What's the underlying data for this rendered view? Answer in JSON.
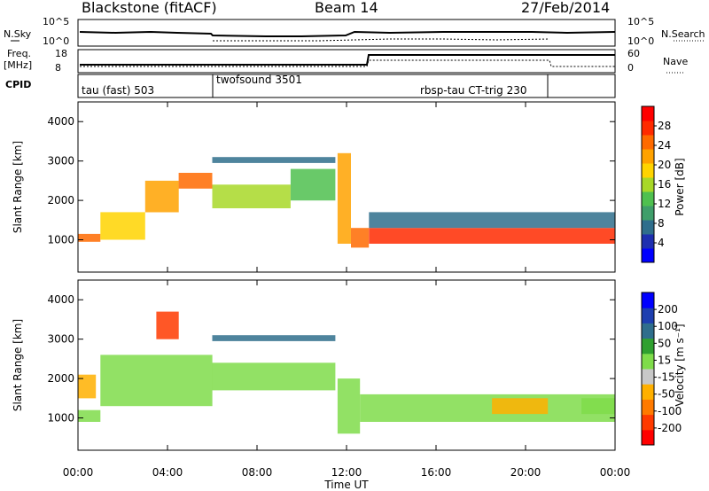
{
  "header": {
    "station": "Blackstone (fitACF)",
    "beam": "Beam 14",
    "date": "27/Feb/2014"
  },
  "panels": {
    "noise_left_label": "N.Sky",
    "noise_right_label": "N.Search",
    "noise_left_ticks": [
      "10^5",
      "10^0"
    ],
    "noise_right_ticks": [
      "10^5",
      "10^0"
    ],
    "freq_label_line1": "Freq.",
    "freq_label_line2": "[MHz]",
    "freq_ticks": [
      "18",
      "8"
    ],
    "nave_label": "Nave",
    "nave_ticks": [
      "60",
      "0"
    ],
    "cpid_label": "CPID",
    "cpid_segments": [
      {
        "label": "tau (fast) 503"
      },
      {
        "label": "twofsound 3501"
      },
      {
        "label": "rbsp-tau CT-trig 230"
      }
    ]
  },
  "axes": {
    "ylabel": "Slant Range [km]",
    "yticks": [
      "4000",
      "3000",
      "2000",
      "1000"
    ],
    "xticks": [
      "00:00",
      "04:00",
      "08:00",
      "12:00",
      "16:00",
      "20:00",
      "00:00"
    ],
    "xlabel": "Time UT"
  },
  "colorbars": {
    "power": {
      "title": "Power [dB]",
      "ticks": [
        "28",
        "24",
        "20",
        "16",
        "12",
        "8",
        "4"
      ],
      "colors": [
        "#0000ff",
        "#1e2fb0",
        "#2f6e8c",
        "#3f9e6a",
        "#4fc04f",
        "#a8d828",
        "#ffd400",
        "#ffa200",
        "#ff6a00",
        "#ff2a00",
        "#ff0000"
      ]
    },
    "velocity": {
      "title": "Velocity [m s⁻¹]",
      "ticks": [
        "200",
        "100",
        "50",
        "15",
        "-15",
        "-50",
        "-100",
        "-200"
      ],
      "colors": [
        "#ff0000",
        "#ff3a00",
        "#ff7a00",
        "#ffb000",
        "#c8c8c8",
        "#7fdc4a",
        "#2fa02f",
        "#2f6e8c",
        "#1e3fb0",
        "#0000ff"
      ]
    }
  },
  "chart_data": {
    "type": "heatmap",
    "x_range_hours": [
      0,
      24
    ],
    "y_range_km": [
      180,
      4500
    ],
    "power": {
      "bands": [
        {
          "t0": 0.0,
          "t1": 1.0,
          "r0": 950,
          "r1": 1150,
          "value": 24
        },
        {
          "t0": 1.0,
          "t1": 3.0,
          "r0": 1000,
          "r1": 1700,
          "value": 18
        },
        {
          "t0": 3.0,
          "t1": 4.5,
          "r0": 1700,
          "r1": 2500,
          "value": 20
        },
        {
          "t0": 4.5,
          "t1": 6.0,
          "r0": 2300,
          "r1": 2700,
          "value": 22
        },
        {
          "t0": 6.0,
          "t1": 9.5,
          "r0": 1800,
          "r1": 2400,
          "value": 16
        },
        {
          "t0": 9.5,
          "t1": 11.5,
          "r0": 2000,
          "r1": 2800,
          "value": 12
        },
        {
          "t0": 6.0,
          "t1": 11.5,
          "r0": 2950,
          "r1": 3100,
          "value": 8
        },
        {
          "t0": 11.6,
          "t1": 12.2,
          "r0": 900,
          "r1": 3200,
          "value": 20
        },
        {
          "t0": 12.2,
          "t1": 13.0,
          "r0": 800,
          "r1": 1300,
          "value": 24
        },
        {
          "t0": 13.0,
          "t1": 24.0,
          "r0": 900,
          "r1": 1300,
          "value": 26
        },
        {
          "t0": 13.0,
          "t1": 24.0,
          "r0": 1300,
          "r1": 1700,
          "value": 8
        }
      ]
    },
    "velocity": {
      "bands": [
        {
          "t0": 0.0,
          "t1": 1.0,
          "r0": 900,
          "r1": 1200,
          "value": 0
        },
        {
          "t0": 0.0,
          "t1": 0.8,
          "r0": 1500,
          "r1": 2100,
          "value": -80
        },
        {
          "t0": 1.0,
          "t1": 6.0,
          "r0": 1300,
          "r1": 2600,
          "value": 0
        },
        {
          "t0": 3.5,
          "t1": 4.5,
          "r0": 3000,
          "r1": 3700,
          "value": -180
        },
        {
          "t0": 6.0,
          "t1": 11.5,
          "r0": 1700,
          "r1": 2400,
          "value": 0
        },
        {
          "t0": 6.0,
          "t1": 11.5,
          "r0": 2950,
          "r1": 3100,
          "value": 120
        },
        {
          "t0": 11.6,
          "t1": 12.6,
          "r0": 600,
          "r1": 2000,
          "value": 40
        },
        {
          "t0": 12.6,
          "t1": 24.0,
          "r0": 900,
          "r1": 1600,
          "value": 0
        },
        {
          "t0": 18.5,
          "t1": 21.0,
          "r0": 1100,
          "r1": 1500,
          "value": -60
        },
        {
          "t0": 22.5,
          "t1": 24.0,
          "r0": 1100,
          "r1": 1500,
          "value": 30
        }
      ]
    }
  }
}
